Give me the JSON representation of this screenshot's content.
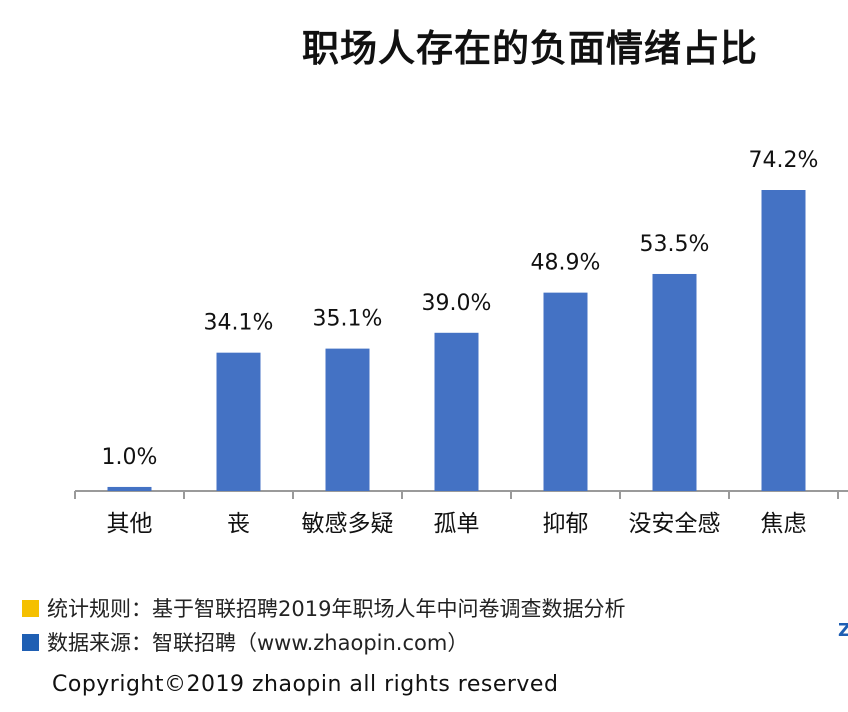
{
  "title": "职场人存在的负面情绪占比",
  "chart_data": {
    "type": "bar",
    "categories": [
      "其他",
      "丧",
      "敏感多疑",
      "孤单",
      "抑郁",
      "没安全感",
      "焦虑"
    ],
    "values": [
      1.0,
      34.1,
      35.1,
      39.0,
      48.9,
      53.5,
      74.2
    ],
    "value_labels": [
      "1.0%",
      "34.1%",
      "35.1%",
      "39.0%",
      "48.9%",
      "53.5%",
      "74.2%"
    ],
    "title": "职场人存在的负面情绪占比",
    "xlabel": "",
    "ylabel": "",
    "unit": "%",
    "ylim": [
      0,
      80
    ],
    "grid": false,
    "bar_color": "#4472c4"
  },
  "notes": [
    {
      "text": "统计规则：基于智联招聘2019年职场人年中问卷调查数据分析",
      "color": "#f5c000"
    },
    {
      "text": "数据来源：智联招聘（www.zhaopin.com）",
      "color": "#1f5fb3"
    }
  ],
  "copyright": "Copyright©2019 zhaopin all rights reserved"
}
